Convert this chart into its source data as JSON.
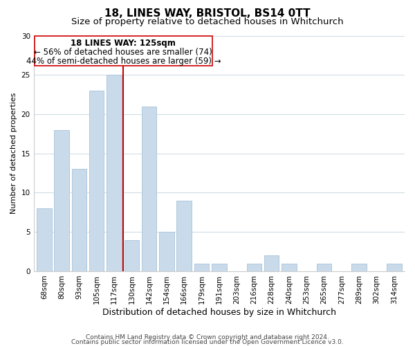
{
  "title": "18, LINES WAY, BRISTOL, BS14 0TT",
  "subtitle": "Size of property relative to detached houses in Whitchurch",
  "xlabel": "Distribution of detached houses by size in Whitchurch",
  "ylabel": "Number of detached properties",
  "categories": [
    "68sqm",
    "80sqm",
    "93sqm",
    "105sqm",
    "117sqm",
    "130sqm",
    "142sqm",
    "154sqm",
    "166sqm",
    "179sqm",
    "191sqm",
    "203sqm",
    "216sqm",
    "228sqm",
    "240sqm",
    "253sqm",
    "265sqm",
    "277sqm",
    "289sqm",
    "302sqm",
    "314sqm"
  ],
  "values": [
    8,
    18,
    13,
    23,
    25,
    4,
    21,
    5,
    9,
    1,
    1,
    0,
    1,
    2,
    1,
    0,
    1,
    0,
    1,
    0,
    1
  ],
  "bar_color": "#c9daea",
  "bar_edge_color": "#b0c8dc",
  "vline_color": "#cc0000",
  "annotation_line1": "18 LINES WAY: 125sqm",
  "annotation_line2": "← 56% of detached houses are smaller (74)",
  "annotation_line3": "44% of semi-detached houses are larger (59) →",
  "ylim": [
    0,
    30
  ],
  "yticks": [
    0,
    5,
    10,
    15,
    20,
    25,
    30
  ],
  "footer_line1": "Contains HM Land Registry data © Crown copyright and database right 2024.",
  "footer_line2": "Contains public sector information licensed under the Open Government Licence v3.0.",
  "background_color": "#ffffff",
  "plot_bg_color": "#ffffff",
  "grid_color": "#d0dce8",
  "title_fontsize": 11,
  "subtitle_fontsize": 9.5,
  "xlabel_fontsize": 9,
  "ylabel_fontsize": 8,
  "tick_fontsize": 7.5,
  "annotation_fontsize": 8.5,
  "footer_fontsize": 6.5
}
